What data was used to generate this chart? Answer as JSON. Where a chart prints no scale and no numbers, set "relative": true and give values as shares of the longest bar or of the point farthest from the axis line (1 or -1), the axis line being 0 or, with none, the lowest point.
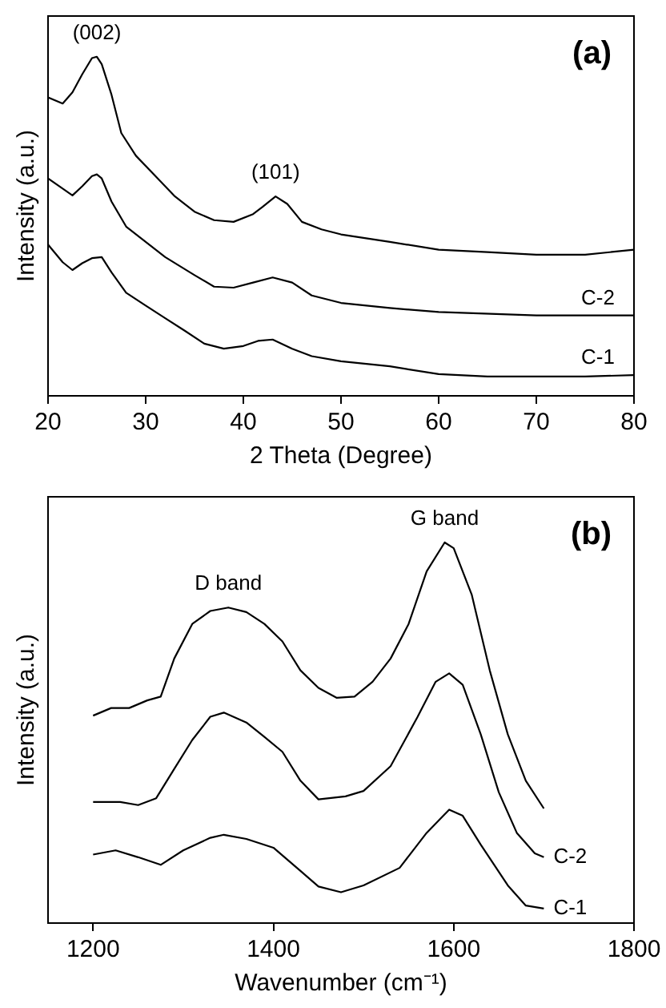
{
  "chart_data": [
    {
      "type": "line",
      "xlabel": "2 Theta (Degree)",
      "ylabel": "Intensity (a.u.)",
      "relative": true,
      "xlim": [
        20,
        80
      ],
      "xticks": [
        20,
        30,
        40,
        50,
        60,
        70,
        80
      ],
      "marker": "none",
      "line_style": "solid",
      "annotations": [
        "(a)",
        {
          "text": "(002)",
          "x": 25,
          "y": 1
        },
        {
          "text": "(101)",
          "x": 43.3,
          "y": 0.588
        }
      ],
      "series": [
        {
          "color": "#000000",
          "x": [
            20,
            21.5,
            22.5,
            23.5,
            24.5,
            25,
            25.5,
            26.5,
            27.5,
            29,
            31,
            33,
            35,
            37,
            39,
            41,
            42,
            43.3,
            44.5,
            46,
            48,
            50,
            55,
            60,
            65,
            70,
            75,
            80
          ],
          "values": [
            0.88,
            0.862,
            0.895,
            0.948,
            0.996,
            1,
            0.978,
            0.888,
            0.775,
            0.708,
            0.648,
            0.588,
            0.543,
            0.518,
            0.513,
            0.536,
            0.558,
            0.588,
            0.566,
            0.513,
            0.491,
            0.476,
            0.454,
            0.431,
            0.424,
            0.416,
            0.416,
            0.431
          ]
        },
        {
          "name": "C-2",
          "color": "#000000",
          "x": [
            20,
            21.5,
            22.5,
            23.5,
            24.5,
            25,
            25.5,
            26.5,
            28,
            30,
            32,
            35,
            37,
            39,
            41,
            43,
            45,
            47,
            50,
            55,
            60,
            70,
            80
          ],
          "values": [
            0.641,
            0.611,
            0.591,
            0.618,
            0.648,
            0.653,
            0.641,
            0.573,
            0.499,
            0.454,
            0.409,
            0.356,
            0.322,
            0.319,
            0.334,
            0.349,
            0.334,
            0.296,
            0.274,
            0.259,
            0.247,
            0.237,
            0.237
          ]
        },
        {
          "name": "C-1",
          "color": "#000000",
          "x": [
            20,
            21.5,
            22.5,
            23.5,
            24.5,
            25.5,
            26.5,
            28,
            30,
            32,
            34,
            36,
            38,
            40,
            41.5,
            43,
            45,
            47,
            50,
            55,
            60,
            65,
            70,
            75,
            80
          ],
          "values": [
            0.446,
            0.394,
            0.371,
            0.391,
            0.406,
            0.409,
            0.364,
            0.304,
            0.266,
            0.229,
            0.192,
            0.154,
            0.139,
            0.147,
            0.162,
            0.166,
            0.139,
            0.117,
            0.102,
            0.087,
            0.064,
            0.057,
            0.057,
            0.057,
            0.061
          ]
        }
      ]
    },
    {
      "type": "line",
      "xlabel": "Wavenumber (cm⁻¹)",
      "ylabel": "Intensity (a.u.)",
      "relative": true,
      "xlim": [
        1150,
        1800
      ],
      "xticks": [
        1200,
        1400,
        1600,
        1800
      ],
      "marker": "none",
      "line_style": "solid",
      "annotations": [
        "(b)",
        {
          "text": "D band",
          "x": 1350,
          "y": 0.829
        },
        {
          "text": "G band",
          "x": 1590,
          "y": 1
        }
      ],
      "series": [
        {
          "color": "#000000",
          "x": [
            1200,
            1220,
            1240,
            1260,
            1275,
            1290,
            1310,
            1330,
            1350,
            1370,
            1390,
            1410,
            1430,
            1450,
            1470,
            1490,
            1510,
            1530,
            1550,
            1570,
            1590,
            1600,
            1620,
            1640,
            1660,
            1680,
            1700
          ],
          "values": [
            0.545,
            0.565,
            0.565,
            0.585,
            0.595,
            0.695,
            0.786,
            0.82,
            0.829,
            0.817,
            0.786,
            0.74,
            0.664,
            0.618,
            0.592,
            0.595,
            0.634,
            0.695,
            0.786,
            0.924,
            1,
            0.985,
            0.863,
            0.664,
            0.496,
            0.374,
            0.301
          ]
        },
        {
          "name": "C-2",
          "color": "#000000",
          "x": [
            1200,
            1230,
            1250,
            1270,
            1290,
            1310,
            1330,
            1345,
            1370,
            1390,
            1410,
            1430,
            1450,
            1480,
            1500,
            1530,
            1560,
            1580,
            1595,
            1610,
            1630,
            1650,
            1670,
            1690,
            1700
          ],
          "values": [
            0.318,
            0.318,
            0.31,
            0.328,
            0.405,
            0.481,
            0.542,
            0.553,
            0.527,
            0.489,
            0.45,
            0.374,
            0.325,
            0.333,
            0.347,
            0.412,
            0.542,
            0.634,
            0.656,
            0.626,
            0.496,
            0.344,
            0.237,
            0.183,
            0.173
          ]
        },
        {
          "name": "C-1",
          "color": "#000000",
          "x": [
            1200,
            1225,
            1250,
            1275,
            1300,
            1330,
            1345,
            1370,
            1400,
            1430,
            1450,
            1475,
            1500,
            1540,
            1570,
            1595,
            1610,
            1630,
            1660,
            1680,
            1700
          ],
          "values": [
            0.18,
            0.191,
            0.173,
            0.153,
            0.191,
            0.224,
            0.232,
            0.221,
            0.198,
            0.137,
            0.096,
            0.081,
            0.099,
            0.145,
            0.237,
            0.298,
            0.282,
            0.206,
            0.099,
            0.046,
            0.038
          ]
        }
      ]
    }
  ]
}
